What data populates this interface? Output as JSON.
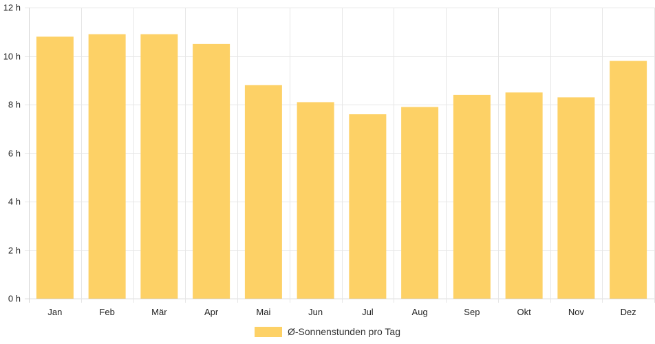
{
  "chart_data": {
    "type": "bar",
    "categories": [
      "Jan",
      "Feb",
      "Mär",
      "Apr",
      "Mai",
      "Jun",
      "Jul",
      "Aug",
      "Sep",
      "Okt",
      "Nov",
      "Dez"
    ],
    "series": [
      {
        "name": "Ø-Sonnenstunden pro Tag",
        "values": [
          10.8,
          10.9,
          10.9,
          10.5,
          8.8,
          8.1,
          7.6,
          7.9,
          8.4,
          8.5,
          8.3,
          9.8
        ],
        "color": "#fdd166"
      }
    ],
    "y_ticks": [
      "0 h",
      "2 h",
      "4 h",
      "6 h",
      "8 h",
      "10 h",
      "12 h"
    ],
    "ylim": [
      0,
      12
    ],
    "grid": true,
    "legend_position": "bottom-center"
  }
}
